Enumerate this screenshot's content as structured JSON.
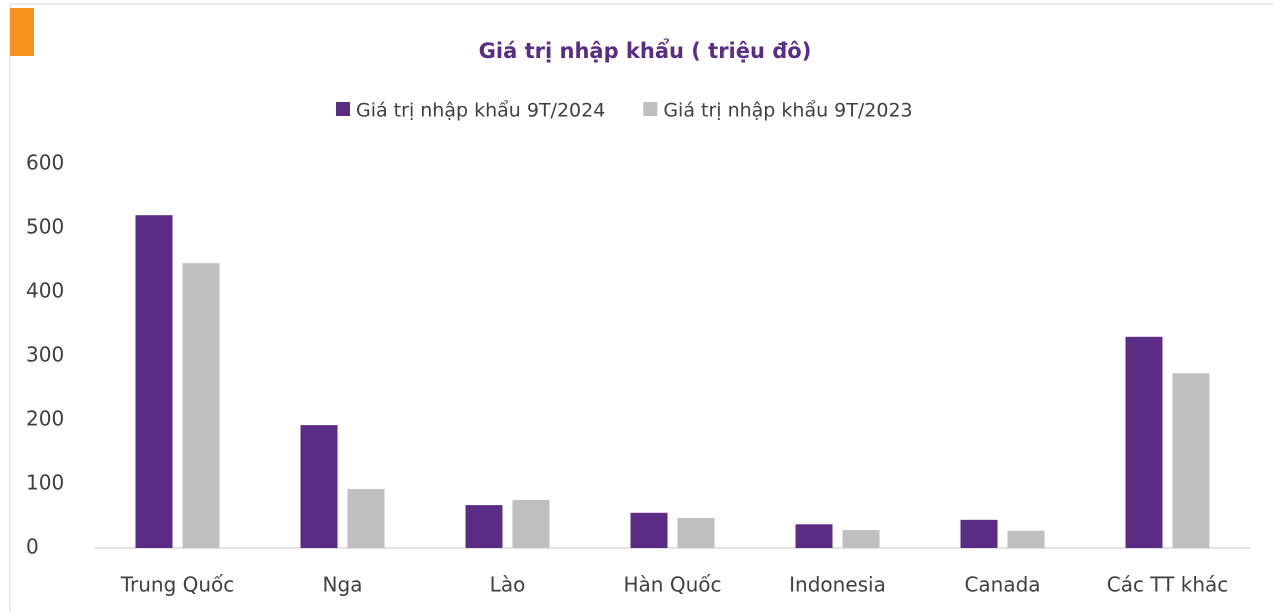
{
  "chart_data": {
    "type": "bar",
    "title": "Giá trị nhập khẩu ( triệu đô)",
    "categories": [
      "Trung Quốc",
      "Nga",
      "Lào",
      "Hàn Quốc",
      "Indonesia",
      "Canada",
      "Các TT khác"
    ],
    "series": [
      {
        "name": "Giá trị nhập khẩu 9T/2024",
        "color": "#5b2c83",
        "values": [
          520,
          192,
          67,
          55,
          37,
          44,
          330
        ]
      },
      {
        "name": "Giá trị nhập khẩu 9T/2023",
        "color": "#bfbfbf",
        "values": [
          445,
          92,
          75,
          47,
          28,
          27,
          273
        ]
      }
    ],
    "ylim": [
      0,
      600
    ],
    "yticks": [
      0,
      100,
      200,
      300,
      400,
      500,
      600
    ],
    "grid": false,
    "legend": "top"
  }
}
